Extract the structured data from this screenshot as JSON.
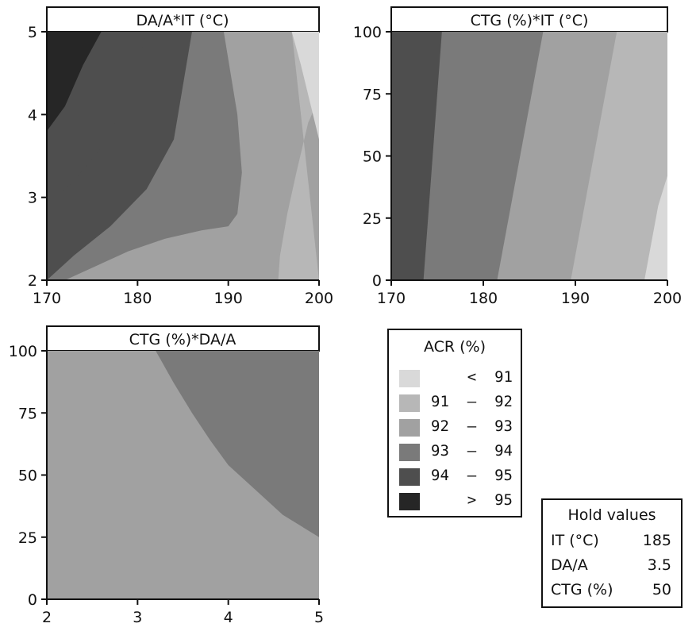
{
  "chart_data": [
    {
      "type": "contour",
      "title": "DA/A*IT (°C)",
      "xlabel": "",
      "ylabel": "",
      "x_ticks": [
        "170",
        "180",
        "190",
        "200"
      ],
      "y_ticks": [
        "2",
        "3",
        "4",
        "5"
      ],
      "xlim": [
        170,
        200
      ],
      "ylim": [
        2,
        5
      ],
      "response": "ACR (%)",
      "contours": [
        {
          "level": 95,
          "points": [
            [
              170,
              3.8
            ],
            [
              172,
              4.1
            ],
            [
              174,
              4.6
            ],
            [
              176,
              5.0
            ]
          ]
        },
        {
          "level": 94,
          "points": [
            [
              170,
              2.9
            ],
            [
              173,
              3.2
            ],
            [
              176,
              3.6
            ],
            [
              179,
              4.2
            ],
            [
              181,
              5.0
            ]
          ]
        },
        {
          "level": 93,
          "points": [
            [
              170,
              2.0
            ],
            [
              173,
              2.3
            ],
            [
              177,
              2.65
            ],
            [
              181,
              3.1
            ],
            [
              184,
              3.7
            ],
            [
              186,
              5.0
            ]
          ]
        },
        {
          "level": 92,
          "points": [
            [
              172,
              2.0
            ],
            [
              175,
              2.15
            ],
            [
              179,
              2.35
            ],
            [
              183,
              2.5
            ],
            [
              187,
              2.6
            ],
            [
              190,
              2.65
            ],
            [
              191,
              2.8
            ],
            [
              191.5,
              3.3
            ],
            [
              191,
              4.0
            ],
            [
              189.5,
              5.0
            ]
          ]
        },
        {
          "level": 91,
          "points": [
            [
              195.5,
              2.0
            ],
            [
              195.7,
              2.3
            ],
            [
              196.5,
              2.8
            ],
            [
              197.5,
              3.3
            ],
            [
              198.8,
              3.9
            ],
            [
              200,
              4.2
            ]
          ]
        },
        {
          "level": 90.7,
          "points": [
            [
              197,
              5.0
            ],
            [
              198,
              4.6
            ],
            [
              200,
              3.7
            ]
          ]
        }
      ]
    },
    {
      "type": "contour",
      "title": "CTG (%)*IT (°C)",
      "xlabel": "",
      "ylabel": "",
      "x_ticks": [
        "170",
        "180",
        "190",
        "200"
      ],
      "y_ticks": [
        "0",
        "25",
        "50",
        "75",
        "100"
      ],
      "xlim": [
        170,
        200
      ],
      "ylim": [
        0,
        100
      ],
      "response": "ACR (%)",
      "contours": [
        {
          "level": 94,
          "points": [
            [
              173.5,
              0
            ],
            [
              175.5,
              100
            ]
          ]
        },
        {
          "level": 93,
          "points": [
            [
              181.5,
              0
            ],
            [
              184,
              50
            ],
            [
              186.5,
              100
            ]
          ]
        },
        {
          "level": 92,
          "points": [
            [
              189.5,
              0
            ],
            [
              192,
              50
            ],
            [
              194.5,
              100
            ]
          ]
        },
        {
          "level": 91,
          "points": [
            [
              197.5,
              0
            ],
            [
              199,
              30
            ],
            [
              200,
              42
            ]
          ]
        }
      ]
    },
    {
      "type": "contour",
      "title": "CTG (%)*DA/A",
      "xlabel": "",
      "ylabel": "",
      "x_ticks": [
        "2",
        "3",
        "4",
        "5"
      ],
      "y_ticks": [
        "0",
        "25",
        "50",
        "75",
        "100"
      ],
      "xlim": [
        2,
        5
      ],
      "ylim": [
        0,
        100
      ],
      "response": "ACR (%)",
      "contours": [
        {
          "level": 93,
          "points": [
            [
              3.2,
              100
            ],
            [
              3.4,
              87
            ],
            [
              3.6,
              75
            ],
            [
              3.8,
              64
            ],
            [
              4.0,
              54
            ],
            [
              4.3,
              44
            ],
            [
              4.6,
              34
            ],
            [
              5.0,
              25
            ]
          ]
        }
      ]
    }
  ],
  "legend": {
    "title": "ACR (%)",
    "items": [
      {
        "label": "   <  91",
        "color": "#d9d9d9"
      },
      {
        "label": "91  –  92",
        "color": "#b7b7b7"
      },
      {
        "label": "92  –  93",
        "color": "#a1a1a1"
      },
      {
        "label": "93  –  94",
        "color": "#7a7a7a"
      },
      {
        "label": "94  –  95",
        "color": "#4e4e4e"
      },
      {
        "label": "   >  95",
        "color": "#262626"
      }
    ]
  },
  "hold": {
    "title": "Hold values",
    "rows": [
      {
        "label": "IT (°C)",
        "value": "185"
      },
      {
        "label": "DA/A",
        "value": "3.5"
      },
      {
        "label": "CTG (%)",
        "value": "50"
      }
    ]
  }
}
